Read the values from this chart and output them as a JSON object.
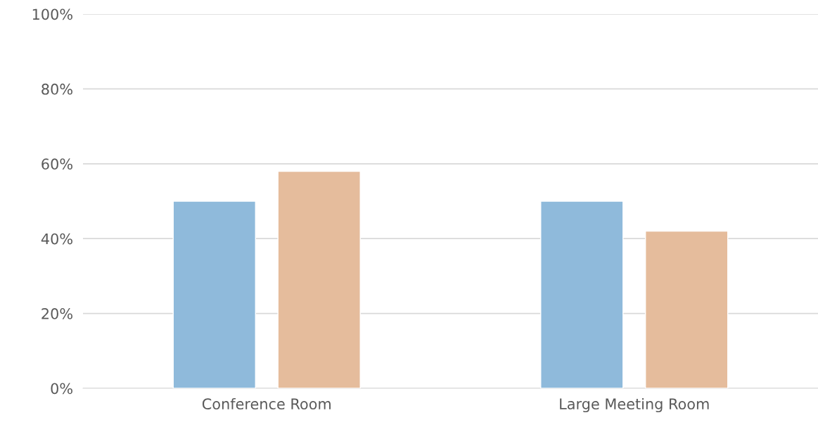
{
  "chart_data": {
    "type": "bar",
    "categories": [
      "Conference Room",
      "Large Meeting Room"
    ],
    "series": [
      {
        "color": "#8fbadb",
        "values": [
          50,
          50
        ]
      },
      {
        "color": "#e5bc9c",
        "values": [
          58,
          42
        ]
      }
    ],
    "ylim": [
      0,
      100
    ],
    "yticks": [
      {
        "value": 0,
        "label": "0%"
      },
      {
        "value": 20,
        "label": "20%"
      },
      {
        "value": 40,
        "label": "40%"
      },
      {
        "value": 60,
        "label": "60%"
      },
      {
        "value": 80,
        "label": "80%"
      },
      {
        "value": 100,
        "label": "100%"
      }
    ],
    "grid": "y"
  }
}
